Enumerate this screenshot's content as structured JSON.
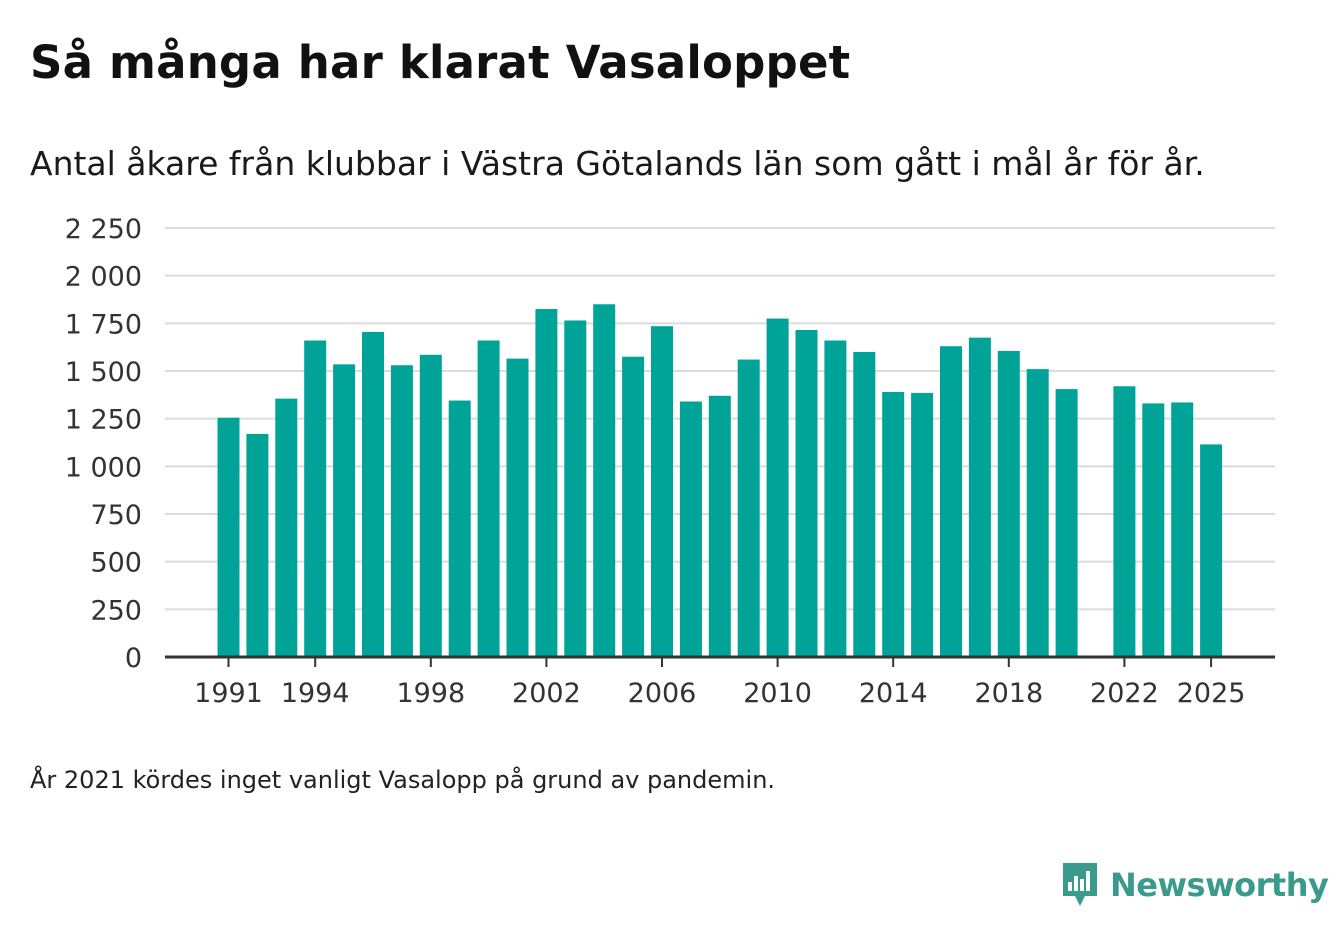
{
  "title": "Så många har klarat Vasaloppet",
  "subtitle": "Antal åkare från klubbar i Västra Götalands län som gått i mål år för år.",
  "footnote": "År 2021 kördes inget vanligt Vasalopp på grund av pandemin.",
  "brand": {
    "name": "Newsworthy",
    "icon": "bar-chart-logo-icon",
    "color": "#3a9b8c"
  },
  "colors": {
    "bar": "#00a398",
    "grid": "#dcdcdc",
    "axis": "#333333"
  },
  "chart_data": {
    "type": "bar",
    "title": "Så många har klarat Vasaloppet",
    "xlabel": "",
    "ylabel": "",
    "ylim": [
      0,
      2250
    ],
    "yticks": [
      0,
      250,
      500,
      750,
      1000,
      1250,
      1500,
      1750,
      2000,
      2250
    ],
    "ytick_labels": [
      "0",
      "250",
      "500",
      "750",
      "1 000",
      "1 250",
      "1 500",
      "1 750",
      "2 000",
      "2 250"
    ],
    "xtick_labels": [
      "1991",
      "1994",
      "1998",
      "2002",
      "2006",
      "2010",
      "2014",
      "2018",
      "2022",
      "2025"
    ],
    "grid": true,
    "categories": [
      "1991",
      "1992",
      "1993",
      "1994",
      "1995",
      "1996",
      "1997",
      "1998",
      "1999",
      "2000",
      "2001",
      "2002",
      "2003",
      "2004",
      "2005",
      "2006",
      "2007",
      "2008",
      "2009",
      "2010",
      "2011",
      "2012",
      "2013",
      "2014",
      "2015",
      "2016",
      "2017",
      "2018",
      "2019",
      "2020",
      "2021",
      "2022",
      "2023",
      "2024",
      "2025"
    ],
    "values": [
      1255,
      1170,
      1355,
      1660,
      1535,
      1705,
      1530,
      1585,
      1345,
      1660,
      1565,
      1825,
      1765,
      1850,
      1575,
      1735,
      1340,
      1370,
      1560,
      1775,
      1715,
      1660,
      1600,
      1390,
      1385,
      1630,
      1675,
      1605,
      1510,
      1405,
      null,
      1420,
      1330,
      1335,
      1115
    ]
  }
}
